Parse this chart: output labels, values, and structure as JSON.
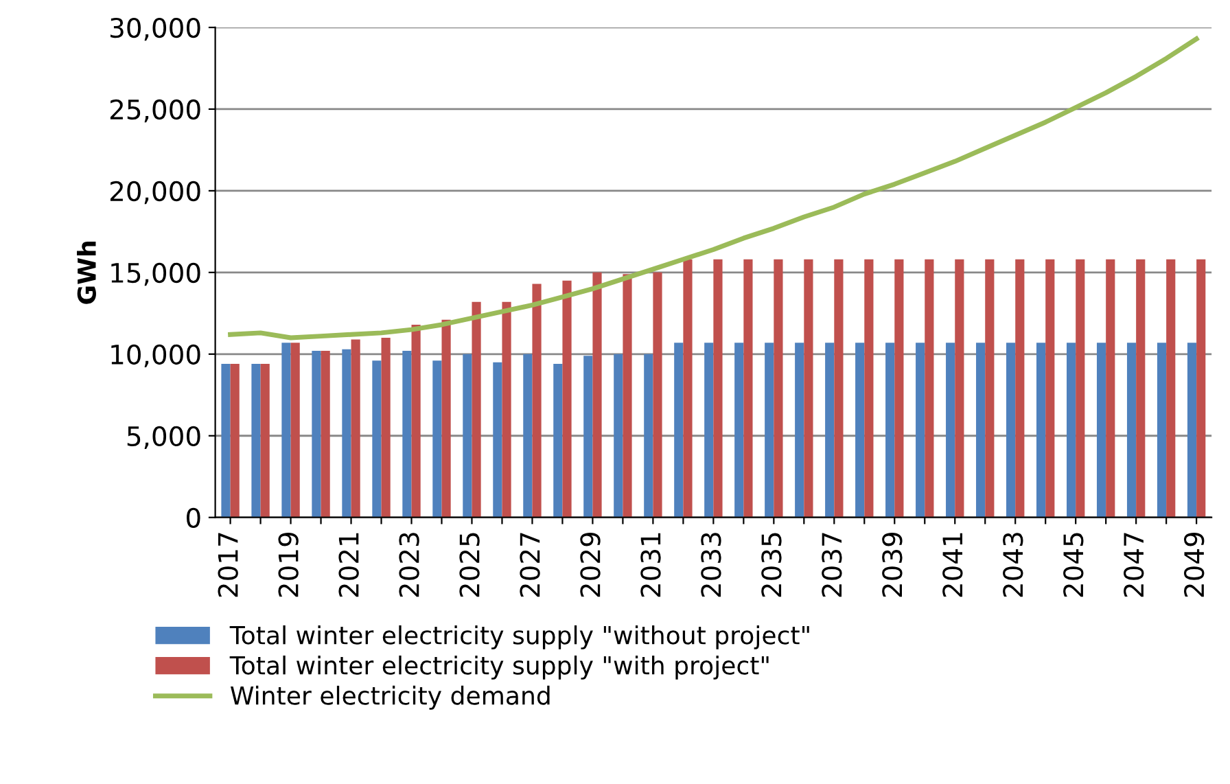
{
  "chart_data": {
    "type": "bar",
    "ylabel": "GWh",
    "categories": [
      "2017",
      null,
      "2019",
      null,
      "2021",
      null,
      "2023",
      null,
      "2025",
      null,
      "2027",
      null,
      "2029",
      null,
      "2031",
      null,
      "2033",
      null,
      "2035",
      null,
      "2037",
      null,
      "2039",
      null,
      "2041",
      null,
      "2043",
      null,
      "2045",
      null,
      "2047",
      null,
      "2049"
    ],
    "series": [
      {
        "name": "Total winter electricity supply \"without project\"",
        "color": "#4f81bd",
        "values": [
          9400,
          9400,
          10700,
          10200,
          10300,
          9600,
          10200,
          9600,
          10000,
          9500,
          10000,
          9400,
          9900,
          10000,
          10000,
          10700,
          10700,
          10700,
          10700,
          10700,
          10700,
          10700,
          10700,
          10700,
          10700,
          10700,
          10700,
          10700,
          10700,
          10700,
          10700,
          10700,
          10700
        ]
      },
      {
        "name": "Total winter electricity supply \"with project\"",
        "color": "#c0504d",
        "values": [
          9400,
          9400,
          10700,
          10200,
          10900,
          11000,
          11800,
          12100,
          13200,
          13200,
          14300,
          14500,
          15000,
          14900,
          15000,
          15800,
          15800,
          15800,
          15800,
          15800,
          15800,
          15800,
          15800,
          15800,
          15800,
          15800,
          15800,
          15800,
          15800,
          15800,
          15800,
          15800,
          15800
        ]
      },
      {
        "name": "Winter electricity demand",
        "type": "line",
        "color": "#9bbb59",
        "values": [
          11200,
          11300,
          11000,
          11100,
          11200,
          11300,
          11500,
          11800,
          12200,
          12600,
          13000,
          13500,
          14000,
          14600,
          15200,
          15800,
          16400,
          17100,
          17700,
          18400,
          19000,
          19800,
          20400,
          21100,
          21800,
          22600,
          23400,
          24200,
          25100,
          26000,
          27000,
          28100,
          29300
        ]
      }
    ],
    "ylim": [
      0,
      30000
    ],
    "yticks": [
      {
        "value": 0,
        "label": "0"
      },
      {
        "value": 5000,
        "label": "5,000"
      },
      {
        "value": 10000,
        "label": "10,000"
      },
      {
        "value": 15000,
        "label": "15,000"
      },
      {
        "value": 20000,
        "label": "20,000"
      },
      {
        "value": 25000,
        "label": "25,000"
      },
      {
        "value": 30000,
        "label": "30,000"
      }
    ],
    "grid": "y",
    "legend": "bottom"
  }
}
